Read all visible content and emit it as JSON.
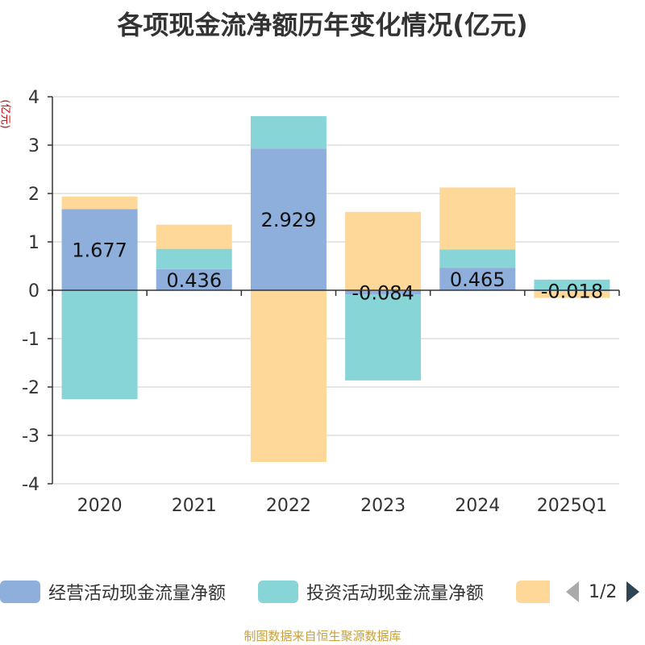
{
  "title": "各项现金流净额历年变化情况(亿元)",
  "y_unit": "(亿元)",
  "source": "制图数据来自恒生聚源数据库",
  "pager": {
    "text": "1/2"
  },
  "chart_data": {
    "type": "bar",
    "stacked": true,
    "categories": [
      "2020",
      "2021",
      "2022",
      "2023",
      "2024",
      "2025Q1"
    ],
    "ylim": [
      -4,
      4
    ],
    "yticks": [
      -4,
      -3,
      -2,
      -1,
      0,
      1,
      2,
      3,
      4
    ],
    "grid": true,
    "legend_position": "bottom",
    "series": [
      {
        "name": "经营活动现金流量净额",
        "color": "#8eaedb",
        "values": [
          1.677,
          0.436,
          2.929,
          -0.084,
          0.465,
          -0.018
        ],
        "labels": [
          "1.677",
          "0.436",
          "2.929",
          "-0.084",
          "0.465",
          "-0.018"
        ]
      },
      {
        "name": "投资活动现金流量净额",
        "color": "#88d5d8",
        "values": [
          -2.25,
          0.42,
          0.67,
          -1.78,
          0.38,
          0.22
        ]
      },
      {
        "name": "",
        "color": "#fdd898",
        "values": [
          0.26,
          0.5,
          -3.55,
          1.62,
          1.28,
          -0.14
        ]
      }
    ]
  }
}
